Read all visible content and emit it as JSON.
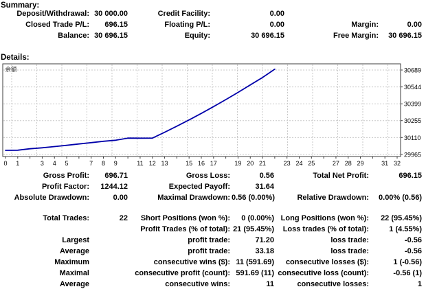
{
  "summary": {
    "heading": "Summary:",
    "rows": [
      [
        "Deposit/Withdrawal:",
        "30 000.00",
        "Credit Facility:",
        "0.00",
        "",
        ""
      ],
      [
        "Closed Trade P/L:",
        "696.15",
        "Floating P/L:",
        "0.00",
        "Margin:",
        "0.00"
      ],
      [
        "Balance:",
        "30 696.15",
        "Equity:",
        "30 696.15",
        "Free Margin:",
        "30 696.15"
      ]
    ]
  },
  "details": {
    "heading": "Details:"
  },
  "chart_data": {
    "type": "line",
    "title": "余额",
    "legend_label": "余额",
    "x": [
      0,
      1,
      2,
      3,
      4,
      5,
      6,
      7,
      8,
      9,
      10,
      11,
      12,
      13,
      14,
      15,
      16,
      17,
      18,
      19,
      20,
      21,
      22
    ],
    "values": [
      30000.0,
      30001.2,
      30013.5,
      30021.8,
      30032.4,
      30043.1,
      30054.6,
      30066.2,
      30077.9,
      30086.3,
      30105.02,
      30104.46,
      30105.0,
      30155.0,
      30207.0,
      30261.0,
      30317.0,
      30375.0,
      30435.0,
      30497.0,
      30561.0,
      30624.95,
      30696.15
    ],
    "xlabel": "",
    "ylabel": "",
    "x_tick_labels": [
      0,
      1,
      3,
      4,
      5,
      7,
      8,
      9,
      11,
      12,
      13,
      15,
      16,
      17,
      19,
      20,
      21,
      23,
      24,
      25,
      27,
      28,
      29,
      31,
      32
    ],
    "y_tick_labels": [
      29965,
      30110,
      30255,
      30399,
      30544,
      30689
    ],
    "xlim": [
      0,
      32.3
    ],
    "ylim": [
      29947,
      30742
    ],
    "grid": true,
    "line_color": "#0000AA",
    "grid_color": "#c9c9c9",
    "border_color": "#3c3c3c",
    "label_color": "#000000"
  },
  "stats": {
    "group1": [
      [
        "Gross Profit:",
        "696.71",
        "Gross Loss:",
        "0.56",
        "Total Net Profit:",
        "696.15"
      ],
      [
        "Profit Factor:",
        "1244.12",
        "Expected Payoff:",
        "31.64",
        "",
        ""
      ],
      [
        "Absolute Drawdown:",
        "0.00",
        "Maximal Drawdown:",
        "0.56 (0.00%)",
        "Relative Drawdown:",
        "0.00% (0.56)"
      ]
    ],
    "group2": [
      [
        "Total Trades:",
        "22",
        "Short Positions (won %):",
        "0 (0.00%)",
        "Long Positions (won %):",
        "22 (95.45%)"
      ],
      [
        "",
        "",
        "Profit Trades (% of total):",
        "21 (95.45%)",
        "Loss trades (% of total):",
        "1 (4.55%)"
      ],
      [
        "Largest",
        "",
        "profit trade:",
        "71.20",
        "loss trade:",
        "-0.56"
      ],
      [
        "Average",
        "",
        "profit trade:",
        "33.18",
        "loss trade:",
        "-0.56"
      ],
      [
        "Maximum",
        "",
        "consecutive wins ($):",
        "11 (591.69)",
        "consecutive losses ($):",
        "1 (-0.56)"
      ],
      [
        "Maximal",
        "",
        "consecutive profit (count):",
        "591.69 (11)",
        "consecutive loss (count):",
        "-0.56 (1)"
      ],
      [
        "Average",
        "",
        "consecutive wins:",
        "11",
        "consecutive losses:",
        "1"
      ]
    ]
  }
}
